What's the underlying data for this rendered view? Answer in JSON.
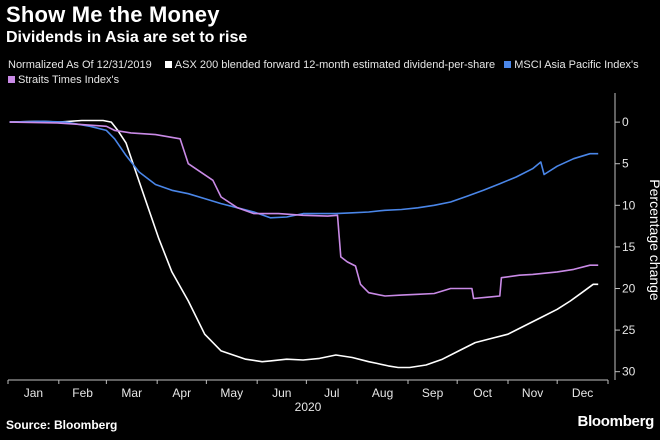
{
  "header": {
    "title": "Show Me the Money",
    "subtitle": "Dividends in Asia are set to rise"
  },
  "legend": {
    "note": "Normalized As Of 12/31/2019",
    "items": [
      {
        "label": "ASX 200 blended forward 12-month estimated dividend-per-share",
        "color": "#ffffff"
      },
      {
        "label": "MSCI Asia Pacific Index's",
        "color": "#4a86e8"
      },
      {
        "label": "Straits Times Index's",
        "color": "#c98ae6"
      }
    ]
  },
  "footer": {
    "source": "Source: Bloomberg",
    "brand": "Bloomberg"
  },
  "chart_data": {
    "type": "line",
    "ylabel": "Percentage change",
    "xlabel": "2020",
    "ylim": [
      -31,
      3.5
    ],
    "y_ticks": [
      0,
      -5,
      -10,
      -15,
      -20,
      -25,
      -30
    ],
    "y_tick_labels": [
      "0",
      "5",
      "10",
      "15",
      "20",
      "25",
      "30"
    ],
    "x_tick_labels": [
      "Jan",
      "Feb",
      "Mar",
      "Apr",
      "May",
      "Jun",
      "Jul",
      "Aug",
      "Sep",
      "Oct",
      "Nov",
      "Dec"
    ],
    "grid": false,
    "legend_position": "top",
    "series": [
      {
        "name": "ASX 200 blended forward 12-month estimated dividend-per-share",
        "color": "#ffffff",
        "x": [
          1,
          20,
          31,
          45,
          58,
          63,
          67,
          72,
          78,
          85,
          92,
          100,
          110,
          120,
          130,
          145,
          155,
          160,
          170,
          180,
          190,
          200,
          210,
          220,
          225,
          232,
          238,
          245,
          255,
          265,
          275,
          285,
          295,
          305,
          315,
          325,
          335,
          343,
          350,
          357,
          360
        ],
        "y": [
          0,
          0.1,
          0,
          0.2,
          0.2,
          0,
          -1,
          -2.5,
          -6,
          -10,
          -14,
          -18,
          -21.5,
          -25.5,
          -27.5,
          -28.5,
          -28.8,
          -28.7,
          -28.5,
          -28.6,
          -28.4,
          -28.0,
          -28.3,
          -28.8,
          -29.0,
          -29.3,
          -29.5,
          -29.5,
          -29.2,
          -28.5,
          -27.5,
          -26.5,
          -26.0,
          -25.5,
          -24.5,
          -23.5,
          -22.5,
          -21.5,
          -20.5,
          -19.5,
          -19.5
        ]
      },
      {
        "name": "MSCI Asia Pacific Index's",
        "color": "#4a86e8",
        "x": [
          1,
          20,
          35,
          50,
          60,
          65,
          72,
          80,
          90,
          100,
          110,
          120,
          130,
          140,
          150,
          160,
          170,
          180,
          190,
          200,
          210,
          220,
          230,
          240,
          250,
          260,
          270,
          280,
          290,
          300,
          310,
          320,
          325,
          327,
          335,
          345,
          355,
          360
        ],
        "y": [
          0,
          0.1,
          0,
          -0.5,
          -1,
          -2,
          -4,
          -6,
          -7.5,
          -8.2,
          -8.6,
          -9.2,
          -9.8,
          -10.3,
          -10.8,
          -11.5,
          -11.4,
          -11.0,
          -11.0,
          -11.0,
          -10.9,
          -10.8,
          -10.6,
          -10.5,
          -10.3,
          -10.0,
          -9.6,
          -8.9,
          -8.2,
          -7.4,
          -6.6,
          -5.6,
          -4.8,
          -6.3,
          -5.3,
          -4.4,
          -3.8,
          -3.8
        ]
      },
      {
        "name": "Straits Times Index's",
        "color": "#c98ae6",
        "x": [
          1,
          30,
          45,
          60,
          65,
          75,
          90,
          105,
          110,
          125,
          130,
          140,
          150,
          165,
          180,
          195,
          201,
          203,
          207,
          212,
          215,
          220,
          230,
          240,
          250,
          260,
          265,
          270,
          280,
          283,
          284,
          295,
          300,
          301,
          312,
          320,
          335,
          345,
          355,
          360
        ],
        "y": [
          0,
          -0.1,
          -0.3,
          -0.5,
          -1,
          -1.3,
          -1.5,
          -2,
          -5,
          -7,
          -9,
          -10.3,
          -11.0,
          -11.0,
          -11.2,
          -11.3,
          -11.2,
          -16.2,
          -16.8,
          -17.3,
          -19.5,
          -20.5,
          -20.9,
          -20.8,
          -20.7,
          -20.6,
          -20.3,
          -20.0,
          -20.0,
          -20.0,
          -21.2,
          -21.0,
          -20.9,
          -18.7,
          -18.4,
          -18.3,
          -18.0,
          -17.7,
          -17.2,
          -17.2
        ]
      }
    ]
  }
}
